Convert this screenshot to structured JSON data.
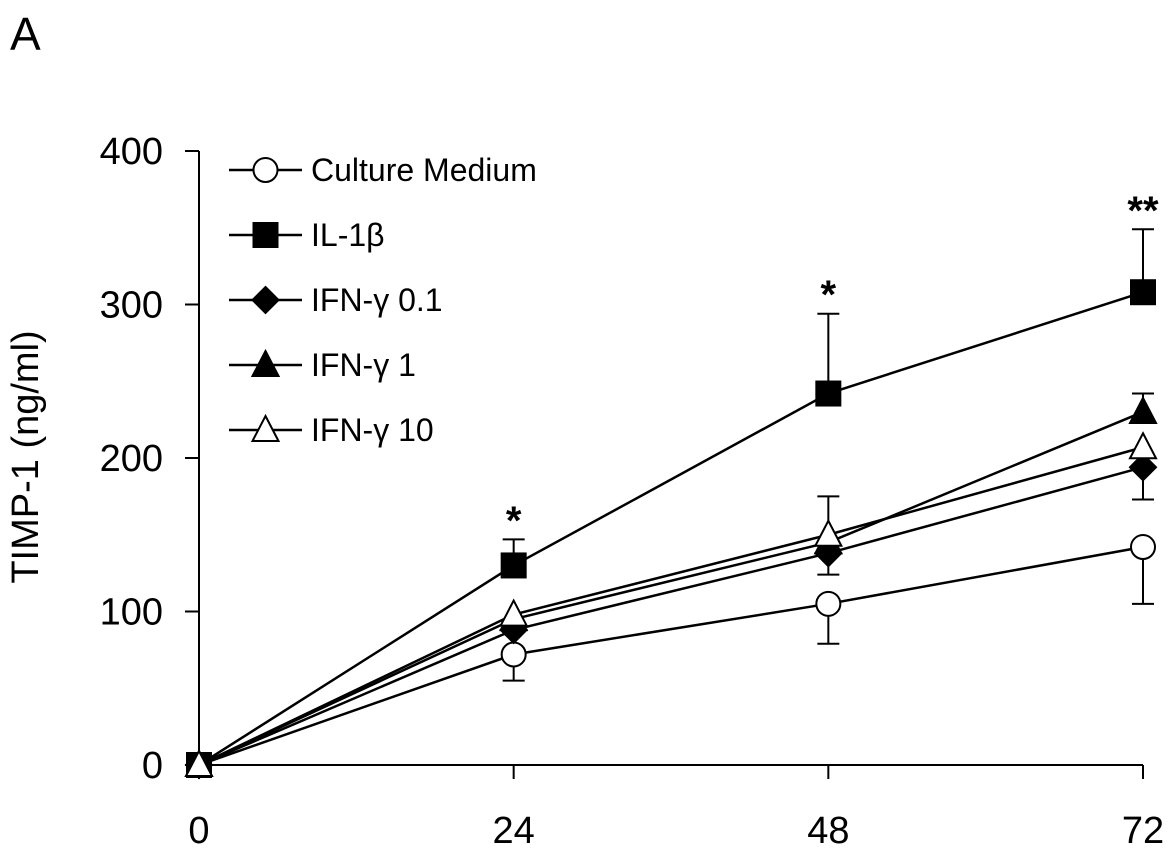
{
  "panel_label": "A",
  "chart_data": {
    "type": "line",
    "title": "",
    "xlabel": "",
    "ylabel": "TIMP-1 (ng/ml)",
    "x": [
      0,
      24,
      48,
      72
    ],
    "xlim": [
      0,
      72
    ],
    "ylim": [
      0,
      400
    ],
    "x_ticks": [
      "0",
      "24",
      "48",
      "72"
    ],
    "y_ticks": [
      "0",
      "100",
      "200",
      "300",
      "400"
    ],
    "grid": false,
    "legend_position": "top-left",
    "series": [
      {
        "name": "Culture Medium",
        "marker": "circle-open",
        "values": [
          0,
          72,
          105,
          142
        ],
        "errors": [
          0,
          17,
          26,
          37
        ]
      },
      {
        "name": "IL-1β",
        "marker": "square-filled",
        "values": [
          0,
          130,
          242,
          308
        ],
        "errors": [
          0,
          17,
          52,
          41
        ]
      },
      {
        "name": "IFN-γ 0.1",
        "marker": "diamond-filled",
        "values": [
          0,
          88,
          138,
          194
        ],
        "errors": [
          0,
          0,
          14,
          21
        ]
      },
      {
        "name": "IFN-γ 1",
        "marker": "triangle-filled",
        "values": [
          0,
          95,
          145,
          230
        ],
        "errors": [
          0,
          0,
          0,
          12
        ]
      },
      {
        "name": "IFN-γ 10",
        "marker": "triangle-open",
        "values": [
          0,
          98,
          150,
          207
        ],
        "errors": [
          0,
          0,
          25,
          0
        ]
      }
    ],
    "annotations": [
      {
        "text": "*",
        "x": 24,
        "y": 148
      },
      {
        "text": "*",
        "x": 48,
        "y": 295
      },
      {
        "text": "**",
        "x": 72,
        "y": 350
      }
    ]
  }
}
